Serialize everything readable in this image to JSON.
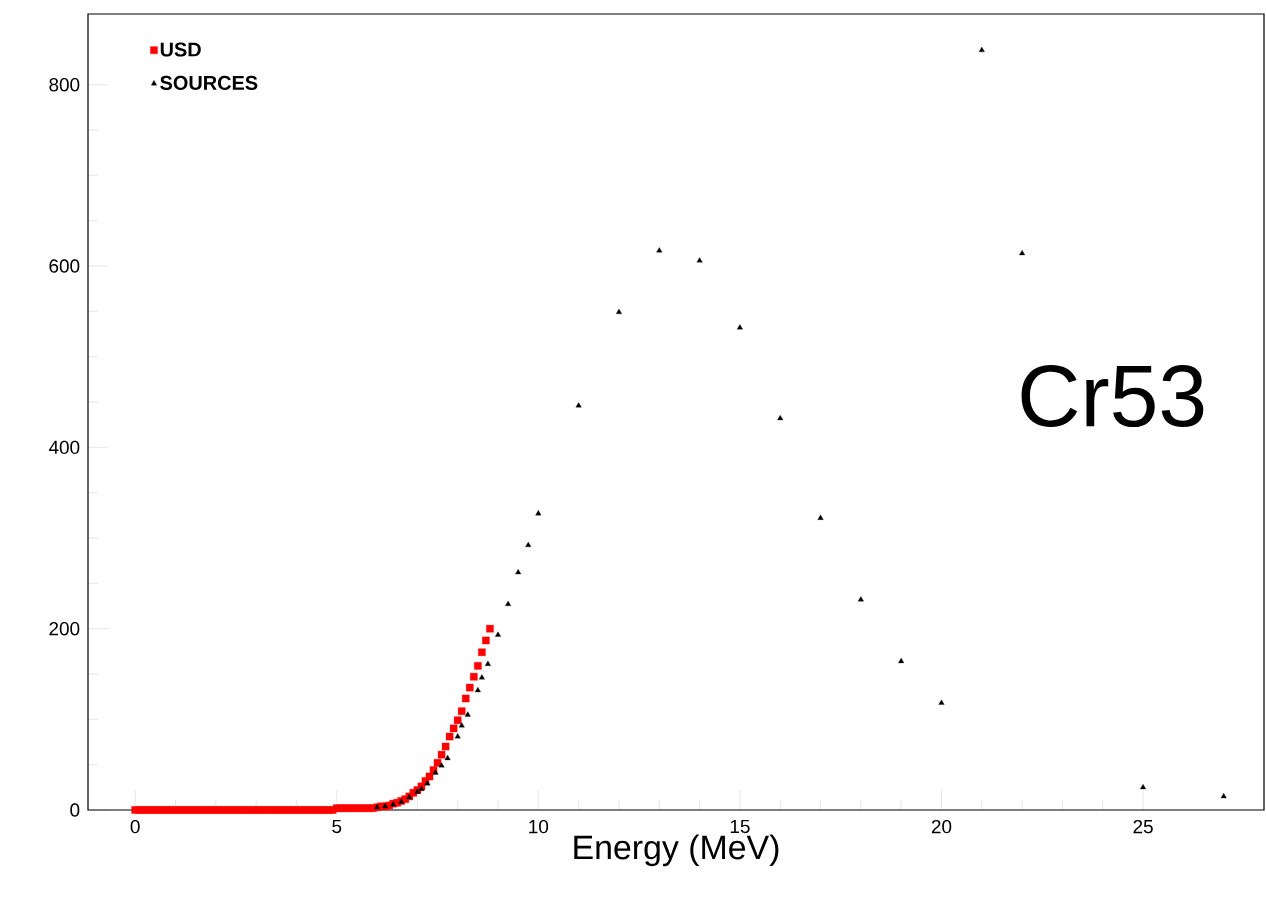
{
  "chart_data": {
    "type": "scatter",
    "xlabel": "Energy (MeV)",
    "annotations": [
      "Cr53"
    ],
    "xlim": [
      -1.17,
      28.0
    ],
    "ylim": [
      0,
      878
    ],
    "xticks": [
      0,
      5,
      10,
      15,
      20,
      25
    ],
    "yticks": [
      0,
      200,
      400,
      600,
      800
    ],
    "legend": "top left",
    "grid": false,
    "series": [
      {
        "name": "USD",
        "color": "#ff0000",
        "marker": "square",
        "x": [
          0,
          0.1,
          0.2,
          0.3,
          0.4,
          0.5,
          0.6,
          0.7,
          0.8,
          0.9,
          1.0,
          1.1,
          1.2,
          1.3,
          1.4,
          1.5,
          1.6,
          1.7,
          1.8,
          1.9,
          2.0,
          2.1,
          2.2,
          2.3,
          2.4,
          2.5,
          2.6,
          2.7,
          2.8,
          2.9,
          3.0,
          3.1,
          3.2,
          3.3,
          3.4,
          3.5,
          3.6,
          3.7,
          3.8,
          3.9,
          4.0,
          4.1,
          4.2,
          4.3,
          4.4,
          4.5,
          4.6,
          4.7,
          4.8,
          4.9,
          5.0,
          5.1,
          5.2,
          5.3,
          5.4,
          5.5,
          5.6,
          5.7,
          5.8,
          5.9,
          6.0,
          6.1,
          6.2,
          6.3,
          6.4,
          6.5,
          6.6,
          6.7,
          6.8,
          6.9,
          7.0,
          7.1,
          7.2,
          7.3,
          7.4,
          7.5,
          7.6,
          7.7,
          7.8,
          7.9,
          8.0,
          8.1,
          8.2,
          8.3,
          8.4,
          8.5,
          8.6,
          8.7,
          8.8
        ],
        "values": [
          0,
          0,
          0,
          0,
          0,
          0,
          0,
          0,
          0,
          0,
          0,
          0,
          0,
          0,
          0,
          0,
          0,
          0,
          0,
          0,
          0,
          0,
          0,
          0,
          0,
          0,
          0,
          0,
          0,
          0,
          0,
          0,
          0,
          0,
          0,
          0,
          0,
          0,
          0,
          0,
          0,
          0,
          0,
          0,
          0,
          0,
          0,
          0,
          0,
          0,
          2,
          2,
          2,
          2,
          2,
          2,
          2,
          2,
          2,
          2,
          3,
          4,
          4,
          5,
          7,
          8,
          10,
          12,
          15,
          19,
          22,
          26,
          32,
          37,
          44,
          52,
          61,
          70,
          81,
          90,
          99,
          109,
          123,
          135,
          147,
          159,
          174,
          187,
          200
        ]
      },
      {
        "name": "SOURCES",
        "color": "#000000",
        "marker": "triangle",
        "x": [
          6.0,
          6.2,
          6.4,
          6.6,
          6.8,
          7.0,
          7.1,
          7.25,
          7.45,
          7.6,
          7.75,
          8.0,
          8.1,
          8.25,
          8.5,
          8.6,
          8.75,
          9.0,
          9.25,
          9.5,
          9.75,
          10,
          11,
          12,
          13,
          14,
          15,
          16,
          17,
          18,
          19,
          20,
          21,
          22,
          25,
          27
        ],
        "values": [
          3,
          4,
          6,
          9,
          14,
          20,
          23,
          29,
          41,
          49,
          57,
          81,
          93,
          105,
          132,
          146,
          161,
          193,
          227,
          262,
          292,
          327,
          446,
          549,
          617,
          606,
          532,
          432,
          322,
          232,
          164,
          118,
          838,
          614,
          25,
          15
        ]
      }
    ]
  }
}
